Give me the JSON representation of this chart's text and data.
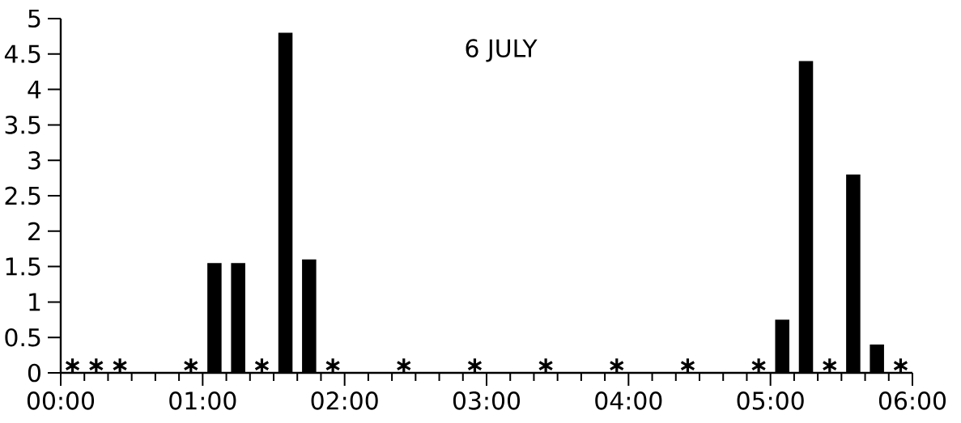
{
  "chart_data": {
    "type": "bar",
    "title": "6 JULY",
    "xlim": [
      0,
      6
    ],
    "xticks": [
      {
        "value": 0,
        "label": "00:00"
      },
      {
        "value": 1,
        "label": "01:00"
      },
      {
        "value": 2,
        "label": "02:00"
      },
      {
        "value": 3,
        "label": "03:00"
      },
      {
        "value": 4,
        "label": "04:00"
      },
      {
        "value": 5,
        "label": "05:00"
      },
      {
        "value": 6,
        "label": "06:00"
      }
    ],
    "ylim": [
      0,
      5
    ],
    "yticks": [
      0,
      0.5,
      1,
      1.5,
      2,
      2.5,
      3,
      3.5,
      4,
      4.5,
      5
    ],
    "series": [
      {
        "color": "#000000",
        "x": [
          1.083,
          1.25,
          1.583,
          1.75,
          5.083,
          5.25,
          5.583,
          5.75
        ],
        "values": [
          1.55,
          1.55,
          4.8,
          1.6,
          0.75,
          4.4,
          2.8,
          0.4
        ]
      },
      {
        "type": "scatter",
        "marker": "cross",
        "color": "#000000",
        "x": [
          0.083,
          0.25,
          0.417,
          0.917,
          1.417,
          1.917,
          2.417,
          2.917,
          3.417,
          3.917,
          4.417,
          4.917,
          5.417,
          5.917
        ],
        "values": [
          0.1,
          0.1,
          0.1,
          0.1,
          0.1,
          0.1,
          0.1,
          0.1,
          0.1,
          0.1,
          0.1,
          0.1,
          0.1,
          0.1
        ]
      }
    ]
  }
}
